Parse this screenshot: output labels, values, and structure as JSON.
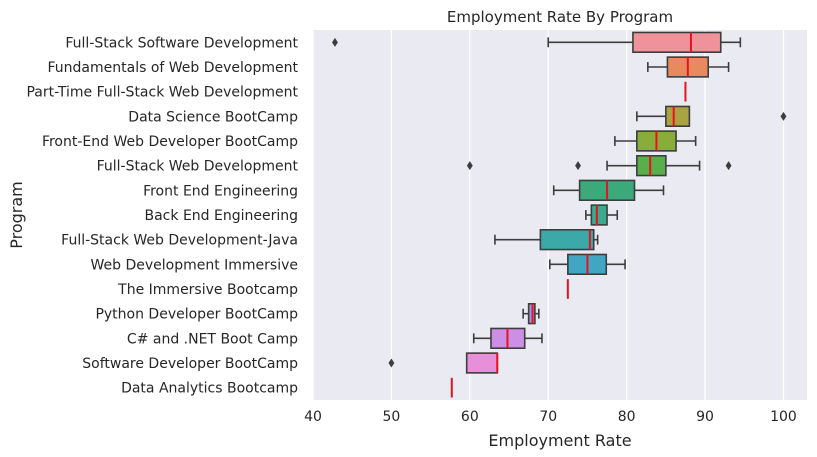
{
  "chart_data": {
    "type": "box",
    "title": "Employment Rate By Program",
    "xlabel": "Employment Rate",
    "ylabel": "Program",
    "xlim": [
      40,
      103
    ],
    "x_ticks": [
      40,
      50,
      60,
      70,
      80,
      90,
      100
    ],
    "grid": "vertical",
    "median_color": "#e8121e",
    "categories": [
      "Full-Stack Software Development",
      "Fundamentals of Web Development",
      "Part-Time Full-Stack Web Development",
      "Data Science BootCamp",
      "Front-End Web Developer BootCamp",
      "Full-Stack Web Development",
      "Front End Engineering",
      "Back End Engineering",
      "Full-Stack Web Development-Java",
      "Web Development Immersive",
      "The Immersive Bootcamp",
      "Python Developer BootCamp",
      "C# and .NET Boot Camp",
      "Software Developer BootCamp",
      "Data Analytics Bootcamp"
    ],
    "boxes": [
      {
        "whisker_low": 70,
        "q1": 80.8,
        "median": 88.2,
        "q3": 92,
        "whisker_high": 94.5,
        "outliers": [
          42.8
        ],
        "color": "#f0929a"
      },
      {
        "whisker_low": 82.7,
        "q1": 85.2,
        "median": 87.8,
        "q3": 90.4,
        "whisker_high": 93,
        "outliers": [],
        "color": "#e98a5e"
      },
      {
        "whisker_low": 87.5,
        "q1": 87.5,
        "median": 87.5,
        "q3": 87.5,
        "whisker_high": 87.5,
        "outliers": [],
        "color": "#d99b54"
      },
      {
        "whisker_low": 81.3,
        "q1": 85,
        "median": 86,
        "q3": 88,
        "whisker_high": 88,
        "outliers": [
          100
        ],
        "color": "#a9a441"
      },
      {
        "whisker_low": 78.5,
        "q1": 81.3,
        "median": 83.8,
        "q3": 86.3,
        "whisker_high": 88.8,
        "outliers": [],
        "color": "#88ad3b"
      },
      {
        "whisker_low": 77.5,
        "q1": 81.3,
        "median": 83,
        "q3": 85,
        "whisker_high": 89.3,
        "outliers": [
          60,
          73.8,
          93
        ],
        "color": "#58b04b"
      },
      {
        "whisker_low": 70.7,
        "q1": 74,
        "median": 77.5,
        "q3": 81,
        "whisker_high": 84.7,
        "outliers": [],
        "color": "#3ba97a"
      },
      {
        "whisker_low": 74.8,
        "q1": 75.5,
        "median": 76.2,
        "q3": 77.5,
        "whisker_high": 78.8,
        "outliers": [],
        "color": "#3aaa91"
      },
      {
        "whisker_low": 63.2,
        "q1": 69,
        "median": 75.3,
        "q3": 75.8,
        "whisker_high": 76.3,
        "outliers": [],
        "color": "#3ba9a8"
      },
      {
        "whisker_low": 70.2,
        "q1": 72.5,
        "median": 75,
        "q3": 77.4,
        "whisker_high": 79.8,
        "outliers": [],
        "color": "#40a6c2"
      },
      {
        "whisker_low": 72.5,
        "q1": 72.5,
        "median": 72.5,
        "q3": 72.5,
        "whisker_high": 72.5,
        "outliers": [],
        "color": "#5aa0d8"
      },
      {
        "whisker_low": 66.8,
        "q1": 67.5,
        "median": 68,
        "q3": 68.3,
        "whisker_high": 68.8,
        "outliers": [],
        "color": "#9c93e2"
      },
      {
        "whisker_low": 60.5,
        "q1": 62.7,
        "median": 64.8,
        "q3": 67,
        "whisker_high": 69.2,
        "outliers": [],
        "color": "#cd8ee6"
      },
      {
        "whisker_low": 59.6,
        "q1": 59.6,
        "median": 63.5,
        "q3": 63.5,
        "whisker_high": 63.5,
        "outliers": [
          50
        ],
        "color": "#e98fd9"
      },
      {
        "whisker_low": 57.7,
        "q1": 57.7,
        "median": 57.7,
        "q3": 57.7,
        "whisker_high": 57.7,
        "outliers": [],
        "color": "#f08fc0"
      }
    ]
  }
}
